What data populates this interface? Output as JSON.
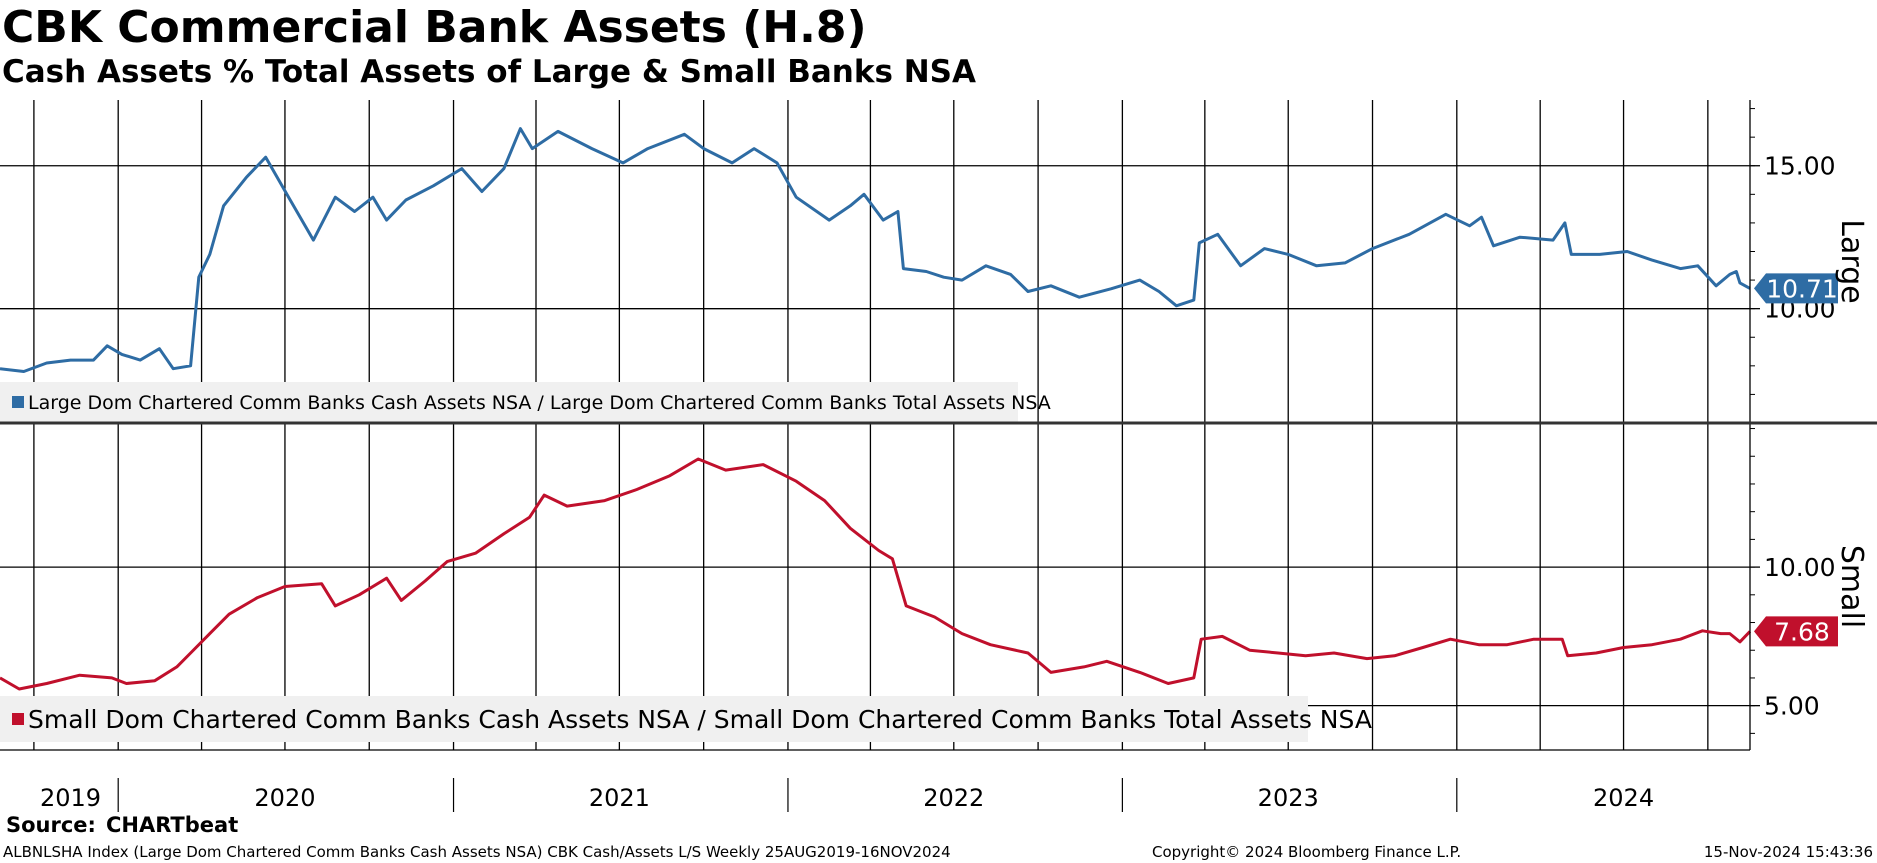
{
  "header": {
    "title": "CBK Commercial Bank Assets (H.8)",
    "subtitle": "Cash Assets % Total Assets of Large & Small Banks NSA"
  },
  "footer": {
    "source_label": "Source:",
    "source_value": "CHARTbeat",
    "ticker_line": "ALBNLSHA Index (Large Dom Chartered Comm Banks Cash Assets NSA) CBK Cash/Assets L/S  Weekly 25AUG2019-16NOV2024",
    "copyright": "Copyright© 2024 Bloomberg Finance L.P.",
    "timestamp": "15-Nov-2024 15:43:36"
  },
  "colors": {
    "large": "#2e6ca4",
    "small": "#c0102c",
    "grid": "#000000",
    "legend_bg": "#f0f0f0"
  },
  "chart_data": [
    {
      "type": "line",
      "panel": "top",
      "axis_label": "Large",
      "legend": "Large Dom Chartered Comm Banks Cash Assets NSA / Large Dom Chartered Comm Banks Total Assets NSA",
      "ylim": [
        6.0,
        17.3
      ],
      "yticks": [
        10.0,
        15.0
      ],
      "ytick_labels": [
        "10.00",
        "15.00"
      ],
      "last_value_label": "10.71",
      "x_range": [
        "2019-08-25",
        "2024-11-16"
      ],
      "series": [
        {
          "name": "Large",
          "points": [
            [
              "2019-08-25",
              7.9
            ],
            [
              "2019-09-20",
              7.8
            ],
            [
              "2019-10-15",
              8.1
            ],
            [
              "2019-11-10",
              8.2
            ],
            [
              "2019-12-05",
              8.2
            ],
            [
              "2019-12-20",
              8.7
            ],
            [
              "2020-01-05",
              8.4
            ],
            [
              "2020-01-25",
              8.2
            ],
            [
              "2020-02-15",
              8.6
            ],
            [
              "2020-03-01",
              7.9
            ],
            [
              "2020-03-20",
              8.0
            ],
            [
              "2020-03-29",
              11.1
            ],
            [
              "2020-04-10",
              11.9
            ],
            [
              "2020-04-25",
              13.6
            ],
            [
              "2020-05-20",
              14.6
            ],
            [
              "2020-06-10",
              15.3
            ],
            [
              "2020-07-05",
              13.9
            ],
            [
              "2020-08-01",
              12.4
            ],
            [
              "2020-08-25",
              13.9
            ],
            [
              "2020-09-15",
              13.4
            ],
            [
              "2020-10-05",
              13.9
            ],
            [
              "2020-10-20",
              13.1
            ],
            [
              "2020-11-10",
              13.8
            ],
            [
              "2020-12-10",
              14.3
            ],
            [
              "2021-01-10",
              14.9
            ],
            [
              "2021-02-01",
              14.1
            ],
            [
              "2021-02-25",
              14.9
            ],
            [
              "2021-03-15",
              16.3
            ],
            [
              "2021-03-28",
              15.6
            ],
            [
              "2021-04-25",
              16.2
            ],
            [
              "2021-06-01",
              15.6
            ],
            [
              "2021-07-05",
              15.1
            ],
            [
              "2021-08-01",
              15.6
            ],
            [
              "2021-09-10",
              16.1
            ],
            [
              "2021-10-01",
              15.6
            ],
            [
              "2021-11-01",
              15.1
            ],
            [
              "2021-11-25",
              15.6
            ],
            [
              "2021-12-20",
              15.1
            ],
            [
              "2022-01-10",
              13.9
            ],
            [
              "2022-02-15",
              13.1
            ],
            [
              "2022-03-10",
              13.6
            ],
            [
              "2022-03-25",
              14.0
            ],
            [
              "2022-04-15",
              13.1
            ],
            [
              "2022-05-01",
              13.4
            ],
            [
              "2022-05-07",
              11.4
            ],
            [
              "2022-06-01",
              11.3
            ],
            [
              "2022-06-20",
              11.1
            ],
            [
              "2022-07-10",
              11.0
            ],
            [
              "2022-08-05",
              11.5
            ],
            [
              "2022-09-01",
              11.2
            ],
            [
              "2022-09-20",
              10.6
            ],
            [
              "2022-10-15",
              10.8
            ],
            [
              "2022-11-15",
              10.4
            ],
            [
              "2022-12-20",
              10.7
            ],
            [
              "2023-01-20",
              11.0
            ],
            [
              "2023-02-10",
              10.6
            ],
            [
              "2023-03-01",
              10.1
            ],
            [
              "2023-03-20",
              10.3
            ],
            [
              "2023-03-26",
              12.3
            ],
            [
              "2023-04-15",
              12.6
            ],
            [
              "2023-05-10",
              11.5
            ],
            [
              "2023-06-05",
              12.1
            ],
            [
              "2023-07-01",
              11.9
            ],
            [
              "2023-08-01",
              11.5
            ],
            [
              "2023-09-01",
              11.6
            ],
            [
              "2023-10-01",
              12.1
            ],
            [
              "2023-11-10",
              12.6
            ],
            [
              "2023-12-20",
              13.3
            ],
            [
              "2024-01-15",
              12.9
            ],
            [
              "2024-01-28",
              13.2
            ],
            [
              "2024-02-10",
              12.2
            ],
            [
              "2024-03-10",
              12.5
            ],
            [
              "2024-04-15",
              12.4
            ],
            [
              "2024-04-28",
              13.0
            ],
            [
              "2024-05-05",
              11.9
            ],
            [
              "2024-06-05",
              11.9
            ],
            [
              "2024-07-05",
              12.0
            ],
            [
              "2024-08-01",
              11.7
            ],
            [
              "2024-09-01",
              11.4
            ],
            [
              "2024-09-20",
              11.5
            ],
            [
              "2024-10-10",
              10.8
            ],
            [
              "2024-10-25",
              11.2
            ],
            [
              "2024-11-01",
              11.3
            ],
            [
              "2024-11-05",
              10.9
            ],
            [
              "2024-11-16",
              10.71
            ]
          ]
        }
      ]
    },
    {
      "type": "line",
      "panel": "bottom",
      "axis_label": "Small",
      "legend": "Small Dom Chartered Comm Banks Cash Assets NSA / Small Dom Chartered Comm Banks Total Assets NSA",
      "ylim": [
        3.4,
        15.2
      ],
      "yticks": [
        5.0,
        10.0
      ],
      "ytick_labels": [
        "5.00",
        "10.00"
      ],
      "last_value_label": "7.68",
      "x_range": [
        "2019-08-25",
        "2024-11-16"
      ],
      "series": [
        {
          "name": "Small",
          "points": [
            [
              "2019-08-25",
              6.0
            ],
            [
              "2019-09-15",
              5.6
            ],
            [
              "2019-10-15",
              5.8
            ],
            [
              "2019-11-20",
              6.1
            ],
            [
              "2019-12-25",
              6.0
            ],
            [
              "2020-01-10",
              5.8
            ],
            [
              "2020-02-10",
              5.9
            ],
            [
              "2020-03-05",
              6.4
            ],
            [
              "2020-03-20",
              6.9
            ],
            [
              "2020-04-10",
              7.6
            ],
            [
              "2020-05-01",
              8.3
            ],
            [
              "2020-06-01",
              8.9
            ],
            [
              "2020-07-01",
              9.3
            ],
            [
              "2020-08-10",
              9.4
            ],
            [
              "2020-08-25",
              8.6
            ],
            [
              "2020-09-20",
              9.0
            ],
            [
              "2020-10-20",
              9.6
            ],
            [
              "2020-11-05",
              8.8
            ],
            [
              "2020-12-01",
              9.5
            ],
            [
              "2020-12-25",
              10.2
            ],
            [
              "2021-01-25",
              10.5
            ],
            [
              "2021-02-25",
              11.2
            ],
            [
              "2021-03-25",
              11.8
            ],
            [
              "2021-04-10",
              12.6
            ],
            [
              "2021-05-05",
              12.2
            ],
            [
              "2021-06-15",
              12.4
            ],
            [
              "2021-07-20",
              12.8
            ],
            [
              "2021-08-25",
              13.3
            ],
            [
              "2021-09-25",
              13.9
            ],
            [
              "2021-10-25",
              13.5
            ],
            [
              "2021-12-05",
              13.7
            ],
            [
              "2022-01-10",
              13.1
            ],
            [
              "2022-02-10",
              12.4
            ],
            [
              "2022-03-10",
              11.4
            ],
            [
              "2022-04-10",
              10.6
            ],
            [
              "2022-04-25",
              10.3
            ],
            [
              "2022-05-10",
              8.6
            ],
            [
              "2022-06-10",
              8.2
            ],
            [
              "2022-07-10",
              7.6
            ],
            [
              "2022-08-10",
              7.2
            ],
            [
              "2022-09-20",
              6.9
            ],
            [
              "2022-10-15",
              6.2
            ],
            [
              "2022-11-20",
              6.4
            ],
            [
              "2022-12-15",
              6.6
            ],
            [
              "2023-01-20",
              6.2
            ],
            [
              "2023-02-20",
              5.8
            ],
            [
              "2023-03-20",
              6.0
            ],
            [
              "2023-03-28",
              7.4
            ],
            [
              "2023-04-20",
              7.5
            ],
            [
              "2023-05-20",
              7.0
            ],
            [
              "2023-06-20",
              6.9
            ],
            [
              "2023-07-20",
              6.8
            ],
            [
              "2023-08-20",
              6.9
            ],
            [
              "2023-09-25",
              6.7
            ],
            [
              "2023-10-25",
              6.8
            ],
            [
              "2023-11-25",
              7.1
            ],
            [
              "2023-12-25",
              7.4
            ],
            [
              "2024-01-25",
              7.2
            ],
            [
              "2024-02-25",
              7.2
            ],
            [
              "2024-03-25",
              7.4
            ],
            [
              "2024-04-25",
              7.4
            ],
            [
              "2024-05-01",
              6.8
            ],
            [
              "2024-06-01",
              6.9
            ],
            [
              "2024-07-01",
              7.1
            ],
            [
              "2024-08-01",
              7.2
            ],
            [
              "2024-09-01",
              7.4
            ],
            [
              "2024-09-25",
              7.7
            ],
            [
              "2024-10-15",
              7.6
            ],
            [
              "2024-10-25",
              7.6
            ],
            [
              "2024-11-05",
              7.3
            ],
            [
              "2024-11-16",
              7.68
            ]
          ]
        }
      ]
    }
  ],
  "xaxis": {
    "year_labels": [
      {
        "label": "2019",
        "date": "2019-11-10"
      },
      {
        "label": "2020",
        "date": "2020-07-01"
      },
      {
        "label": "2021",
        "date": "2021-07-01"
      },
      {
        "label": "2022",
        "date": "2022-07-01"
      },
      {
        "label": "2023",
        "date": "2023-07-01"
      },
      {
        "label": "2024",
        "date": "2024-07-01"
      }
    ],
    "year_boundaries": [
      "2020-01-01",
      "2021-01-01",
      "2022-01-01",
      "2023-01-01",
      "2024-01-01"
    ],
    "quarter_gridlines": [
      "2019-10-01",
      "2020-01-01",
      "2020-04-01",
      "2020-07-01",
      "2020-10-01",
      "2021-01-01",
      "2021-04-01",
      "2021-07-01",
      "2021-10-01",
      "2022-01-01",
      "2022-04-01",
      "2022-07-01",
      "2022-10-01",
      "2023-01-01",
      "2023-04-01",
      "2023-07-01",
      "2023-10-01",
      "2024-01-01",
      "2024-04-01",
      "2024-07-01",
      "2024-10-01"
    ]
  }
}
